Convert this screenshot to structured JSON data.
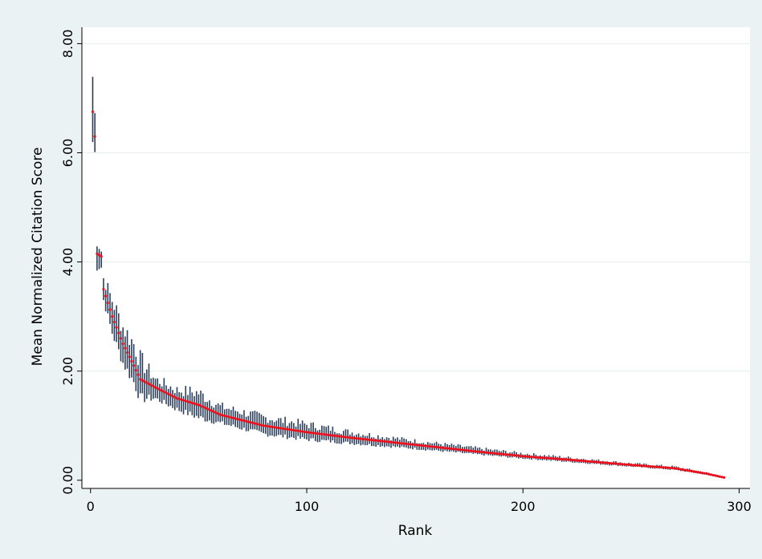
{
  "chart_data": {
    "type": "scatter",
    "title": "",
    "xlabel": "Rank",
    "ylabel": "Mean Normalized Citation Score",
    "xlim": [
      -4,
      305
    ],
    "ylim": [
      -0.15,
      8.3
    ],
    "x_ticks": [
      0,
      100,
      200,
      300
    ],
    "x_tick_labels": [
      "0",
      "100",
      "200",
      "300"
    ],
    "y_ticks": [
      0,
      2,
      4,
      6,
      8
    ],
    "y_tick_labels": [
      "0.00",
      "2.00",
      "4.00",
      "6.00",
      "8.00"
    ],
    "grid": "horizontal",
    "legend": "none",
    "n_points": 293,
    "series": [
      {
        "kind": "interval",
        "color": "#2b3f5c",
        "description": "confidence range per rank (low..high)"
      },
      {
        "kind": "point",
        "color": "#e8101c",
        "description": "mean value per rank"
      }
    ],
    "anchors": [
      {
        "x": 1,
        "y": 6.75,
        "low": 6.2,
        "high": 7.4
      },
      {
        "x": 2,
        "y": 6.3,
        "low": 6.0,
        "high": 6.7
      },
      {
        "x": 3,
        "y": 4.15,
        "low": 3.9,
        "high": 4.4
      },
      {
        "x": 5,
        "y": 4.1,
        "low": 3.9,
        "high": 4.2
      },
      {
        "x": 6,
        "y": 3.5,
        "low": 3.3,
        "high": 3.7
      },
      {
        "x": 10,
        "y": 3.0,
        "low": 2.7,
        "high": 3.3
      },
      {
        "x": 15,
        "y": 2.5,
        "low": 2.15,
        "high": 2.8
      },
      {
        "x": 20,
        "y": 2.1,
        "low": 1.8,
        "high": 2.5
      },
      {
        "x": 23,
        "y": 1.85,
        "low": 1.5,
        "high": 2.2
      },
      {
        "x": 30,
        "y": 1.7,
        "low": 1.5,
        "high": 1.85
      },
      {
        "x": 40,
        "y": 1.5,
        "low": 1.3,
        "high": 1.65
      },
      {
        "x": 50,
        "y": 1.38,
        "low": 1.15,
        "high": 1.6
      },
      {
        "x": 60,
        "y": 1.2,
        "low": 1.05,
        "high": 1.35
      },
      {
        "x": 80,
        "y": 1.0,
        "low": 0.85,
        "high": 1.15
      },
      {
        "x": 100,
        "y": 0.88,
        "low": 0.75,
        "high": 1.02
      },
      {
        "x": 120,
        "y": 0.78,
        "low": 0.68,
        "high": 0.88
      },
      {
        "x": 150,
        "y": 0.65,
        "low": 0.58,
        "high": 0.72
      },
      {
        "x": 180,
        "y": 0.52,
        "low": 0.47,
        "high": 0.58
      },
      {
        "x": 200,
        "y": 0.44,
        "low": 0.4,
        "high": 0.49
      },
      {
        "x": 220,
        "y": 0.38,
        "low": 0.34,
        "high": 0.42
      },
      {
        "x": 250,
        "y": 0.28,
        "low": 0.25,
        "high": 0.31
      },
      {
        "x": 270,
        "y": 0.22,
        "low": 0.19,
        "high": 0.25
      },
      {
        "x": 285,
        "y": 0.12,
        "low": 0.1,
        "high": 0.14
      },
      {
        "x": 293,
        "y": 0.05,
        "low": 0.04,
        "high": 0.06
      }
    ]
  }
}
